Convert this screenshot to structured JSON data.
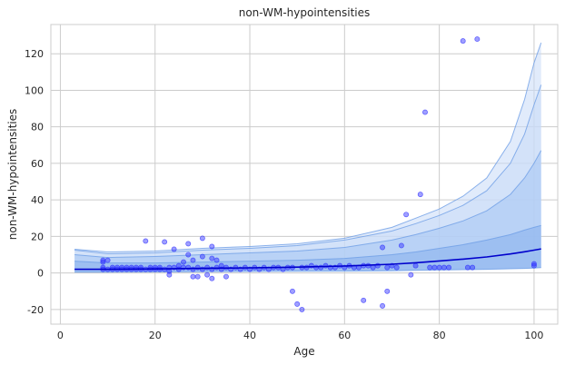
{
  "chart_data": {
    "type": "scatter",
    "title": "non-WM-hypointensities",
    "xlabel": "Age",
    "ylabel": "non-WM-hypointensities",
    "xlim": [
      -2,
      105
    ],
    "ylim": [
      -28,
      136
    ],
    "xticks": [
      0,
      20,
      40,
      60,
      80,
      100
    ],
    "yticks": [
      -20,
      0,
      20,
      40,
      60,
      80,
      100,
      120
    ],
    "grid": true,
    "colors": {
      "points": "#2a2aff",
      "median_line": "#0000cc",
      "band_outer": "#c9dbf7",
      "band_mid": "#a9c8f3",
      "band_inner": "#8ab3ee",
      "band_lines": "#6f9fe6"
    },
    "centile_curves": {
      "x": [
        3,
        10,
        20,
        30,
        40,
        50,
        60,
        70,
        75,
        80,
        85,
        90,
        95,
        98,
        100,
        101.5
      ],
      "median": [
        2,
        2,
        2.2,
        2.5,
        2.8,
        3.2,
        3.8,
        4.8,
        5.6,
        6.6,
        7.6,
        8.8,
        10.4,
        11.6,
        12.5,
        13.2
      ],
      "p_low": [
        0.5,
        0.5,
        0.6,
        0.7,
        0.8,
        0.9,
        1.0,
        1.2,
        1.4,
        1.6,
        1.8,
        2.0,
        2.3,
        2.5,
        2.7,
        2.9
      ],
      "p_high1": [
        6.5,
        5.5,
        5.5,
        6,
        6.5,
        7,
        8,
        10,
        11.5,
        13.5,
        15.5,
        18,
        21,
        23.5,
        25,
        26
      ],
      "p_high2": [
        10,
        8.5,
        9,
        10,
        11,
        12,
        14,
        18,
        21,
        24.5,
        28.5,
        34,
        43,
        52,
        60,
        67
      ],
      "p_high3": [
        12.5,
        10.5,
        11,
        12.5,
        13.5,
        15,
        18,
        23,
        27,
        31.5,
        37,
        45,
        60,
        76,
        92,
        103
      ],
      "p_high4": [
        13,
        11.5,
        12,
        13.5,
        14.5,
        16,
        19,
        25,
        30,
        35,
        42,
        52,
        72,
        95,
        115,
        126
      ]
    },
    "points": [
      [
        9,
        2
      ],
      [
        9,
        3
      ],
      [
        9,
        7
      ],
      [
        9,
        6
      ],
      [
        10,
        2
      ],
      [
        10,
        7
      ],
      [
        11,
        2
      ],
      [
        11,
        3
      ],
      [
        12,
        2
      ],
      [
        12,
        3
      ],
      [
        13,
        2
      ],
      [
        13,
        3
      ],
      [
        14,
        2
      ],
      [
        14,
        3
      ],
      [
        15,
        2
      ],
      [
        15,
        3
      ],
      [
        16,
        2
      ],
      [
        16,
        3
      ],
      [
        17,
        2
      ],
      [
        17,
        3
      ],
      [
        18,
        2
      ],
      [
        18,
        17.5
      ],
      [
        19,
        2
      ],
      [
        19,
        3
      ],
      [
        20,
        2
      ],
      [
        20,
        3
      ],
      [
        21,
        2
      ],
      [
        21,
        3
      ],
      [
        22,
        2
      ],
      [
        22,
        17
      ],
      [
        23,
        3
      ],
      [
        23,
        -1
      ],
      [
        23,
        1
      ],
      [
        24,
        3
      ],
      [
        24,
        13
      ],
      [
        25,
        2
      ],
      [
        25,
        4
      ],
      [
        26,
        3
      ],
      [
        26,
        6
      ],
      [
        27,
        3
      ],
      [
        27,
        16
      ],
      [
        27,
        10
      ],
      [
        28,
        2
      ],
      [
        28,
        -2
      ],
      [
        28,
        7
      ],
      [
        29,
        -2
      ],
      [
        29,
        3
      ],
      [
        30,
        2
      ],
      [
        30,
        9
      ],
      [
        30,
        19
      ],
      [
        31,
        3
      ],
      [
        31,
        -1
      ],
      [
        32,
        2
      ],
      [
        32,
        14.5
      ],
      [
        32,
        -3
      ],
      [
        32,
        8
      ],
      [
        33,
        3
      ],
      [
        33,
        7
      ],
      [
        34,
        2
      ],
      [
        34,
        4
      ],
      [
        35,
        3
      ],
      [
        35,
        -2
      ],
      [
        36,
        2
      ],
      [
        37,
        3
      ],
      [
        38,
        2
      ],
      [
        39,
        3
      ],
      [
        40,
        2
      ],
      [
        41,
        3
      ],
      [
        42,
        2
      ],
      [
        43,
        3
      ],
      [
        44,
        2
      ],
      [
        45,
        3
      ],
      [
        46,
        3
      ],
      [
        47,
        2
      ],
      [
        48,
        3
      ],
      [
        49,
        3
      ],
      [
        49,
        -10
      ],
      [
        50,
        -17
      ],
      [
        51,
        -20
      ],
      [
        51,
        3
      ],
      [
        52,
        3
      ],
      [
        53,
        4
      ],
      [
        54,
        3
      ],
      [
        55,
        3
      ],
      [
        56,
        4
      ],
      [
        57,
        3
      ],
      [
        58,
        3
      ],
      [
        59,
        4
      ],
      [
        60,
        3
      ],
      [
        61,
        4
      ],
      [
        62,
        3
      ],
      [
        63,
        3
      ],
      [
        64,
        -15
      ],
      [
        64,
        4
      ],
      [
        65,
        4
      ],
      [
        66,
        3
      ],
      [
        67,
        4
      ],
      [
        68,
        -18
      ],
      [
        68,
        14
      ],
      [
        69,
        -10
      ],
      [
        69,
        3
      ],
      [
        70,
        4
      ],
      [
        71,
        3
      ],
      [
        72,
        15
      ],
      [
        73,
        32
      ],
      [
        74,
        -1
      ],
      [
        75,
        4
      ],
      [
        76,
        43
      ],
      [
        77,
        88
      ],
      [
        78,
        3
      ],
      [
        79,
        3
      ],
      [
        80,
        3
      ],
      [
        81,
        3
      ],
      [
        82,
        3
      ],
      [
        85,
        127
      ],
      [
        86,
        3
      ],
      [
        87,
        3
      ],
      [
        88,
        128
      ],
      [
        100,
        5
      ],
      [
        100,
        4
      ]
    ]
  }
}
